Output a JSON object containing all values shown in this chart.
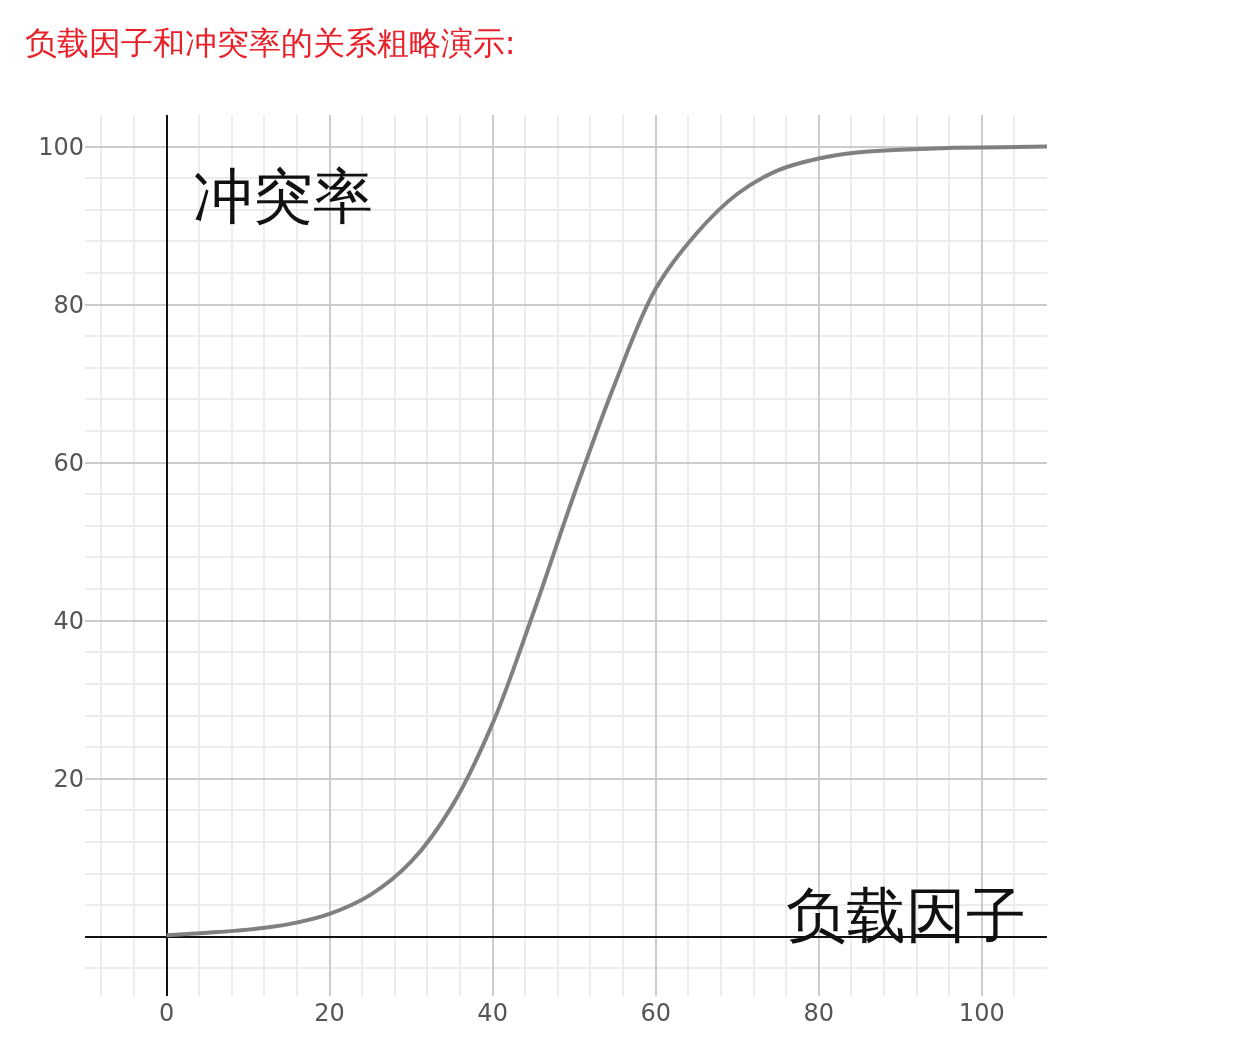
{
  "chart_data": {
    "type": "line",
    "title": "负载因子和冲突率的关系粗略演示:",
    "xlabel": "负载因子",
    "ylabel": "冲突率",
    "x": [
      0,
      5,
      10,
      15,
      20,
      25,
      30,
      35,
      40,
      45,
      50,
      55,
      60,
      65,
      70,
      75,
      80,
      85,
      90,
      95,
      100,
      108
    ],
    "series": [
      {
        "color": "#808080",
        "values": [
          0.2,
          0.5,
          0.9,
          1.6,
          2.9,
          5.3,
          9.5,
          16.5,
          27,
          41,
          56,
          70,
          82,
          89,
          94,
          97,
          98.5,
          99.3,
          99.6,
          99.8,
          99.9,
          100
        ]
      }
    ],
    "xlim": [
      -10,
      108
    ],
    "ylim": [
      -7.5,
      104
    ],
    "xticks": [
      0,
      20,
      40,
      60,
      80,
      100
    ],
    "yticks": [
      20,
      40,
      60,
      80,
      100
    ],
    "grid": true,
    "line_style": "solid",
    "marker": "none"
  }
}
